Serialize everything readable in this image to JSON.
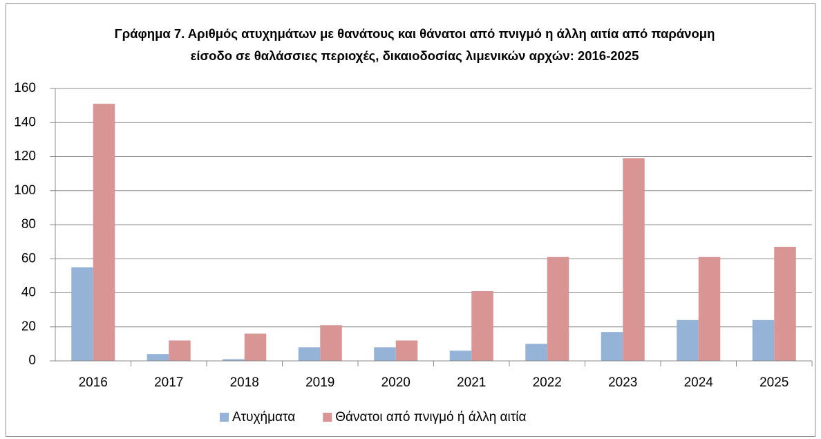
{
  "chart_data": {
    "type": "bar",
    "title": "Γράφημα 7. Αριθμός ατυχημάτων με θανάτους και θάνατοι από πνιγμό η άλλη αιτία από παράνομη είσοδο σε θαλάσσιες περιοχές, δικαιοδοσίας λιμενικών αρχών: 2016-2025",
    "categories": [
      "2016",
      "2017",
      "2018",
      "2019",
      "2020",
      "2021",
      "2022",
      "2023",
      "2024",
      "2025"
    ],
    "series": [
      {
        "name": "Ατυχήματα",
        "color": "#95b3d7",
        "values": [
          55,
          4,
          1,
          8,
          8,
          6,
          10,
          17,
          24,
          24
        ]
      },
      {
        "name": "Θάνατοι από πνιγμό ή άλλη αιτία",
        "color": "#d99594",
        "values": [
          151,
          12,
          16,
          21,
          12,
          41,
          61,
          119,
          61,
          67
        ]
      }
    ],
    "ylim": [
      0,
      160
    ],
    "yticks": [
      0,
      20,
      40,
      60,
      80,
      100,
      120,
      140,
      160
    ],
    "grid": true,
    "legend": "bottom"
  }
}
